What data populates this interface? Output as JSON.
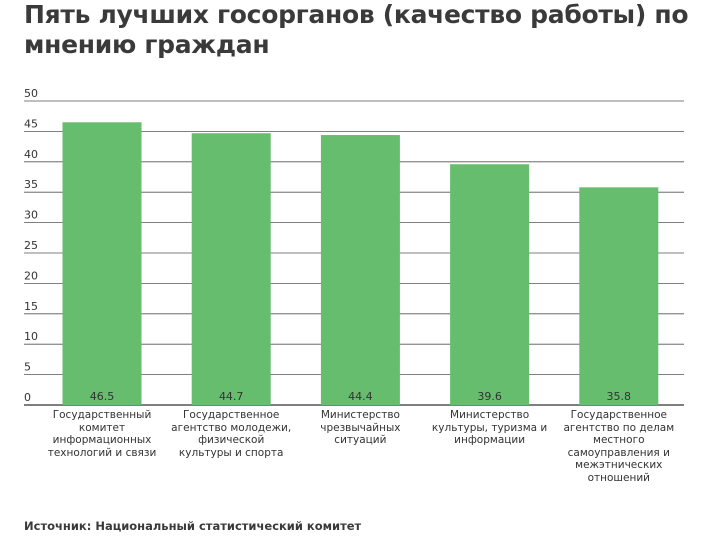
{
  "chart_data": {
    "type": "bar",
    "title": "Пять лучших госорганов (качество работы) по мнению граждан",
    "categories": [
      "Государственный комитет информационных технологий и связи",
      "Государственное агентство молодежи, физической культуры и спорта",
      "Министерство чрезвычайных ситуаций",
      "Министерство культуры, туризма и информации",
      "Государственное агентство по делам местного самоуправления и межэтнических отношений"
    ],
    "values": [
      46.5,
      44.7,
      44.4,
      39.6,
      35.8
    ],
    "value_labels": [
      "46.5",
      "44.7",
      "44.4",
      "39.6",
      "35.8"
    ],
    "yticks": [
      "0",
      "5",
      "10",
      "15",
      "20",
      "25",
      "30",
      "35",
      "40",
      "45",
      "50"
    ],
    "ylim": [
      0,
      50
    ],
    "xlabel": "",
    "ylabel": "",
    "grid": true,
    "bar_color": "#66bd6e",
    "source": "Источник: Национальный статистический комитет"
  }
}
